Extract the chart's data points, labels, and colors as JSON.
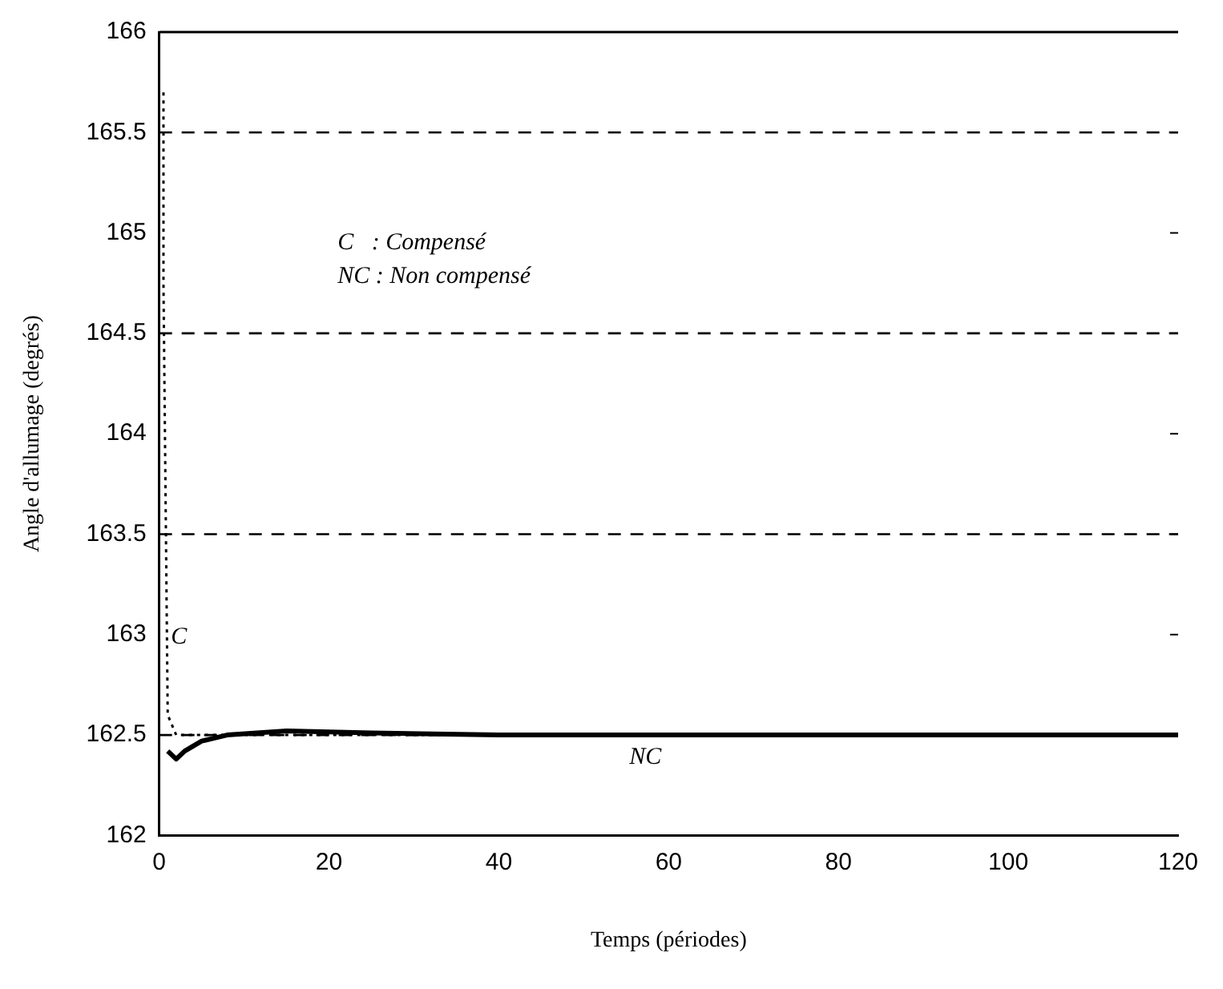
{
  "chart_data": {
    "type": "line",
    "xlabel": "Temps (périodes)",
    "ylabel": "Angle d'allumage (degrés)",
    "xlim": [
      0,
      120
    ],
    "xticks": [
      0,
      20,
      40,
      60,
      80,
      100,
      120
    ],
    "ylim": [
      162,
      166
    ],
    "yticks": [
      162,
      162.5,
      163,
      163.5,
      164,
      164.5,
      165,
      165.5,
      166
    ],
    "grid": false,
    "legend": false,
    "marker": "none",
    "series": [
      {
        "color": "#000000",
        "line_style": "dotted",
        "x": [
          0.5,
          0.5,
          1,
          2,
          5,
          20,
          60,
          120
        ],
        "values": [
          165.7,
          164.75,
          162.6,
          162.5,
          162.5,
          162.5,
          162.5,
          162.5
        ]
      },
      {
        "color": "#000000",
        "line_style": "solid",
        "x": [
          1,
          2,
          3,
          5,
          8,
          15,
          25,
          40,
          50,
          60,
          80,
          100,
          120
        ],
        "values": [
          162.42,
          162.38,
          162.42,
          162.47,
          162.5,
          162.52,
          162.51,
          162.5,
          162.5,
          162.5,
          162.5,
          162.5,
          162.5
        ]
      }
    ],
    "ref_lines": [
      {
        "axis": "y",
        "value": 165.5,
        "line_style": "dashed",
        "color": "#000000"
      },
      {
        "axis": "y",
        "value": 164.5,
        "line_style": "dashed",
        "color": "#000000"
      },
      {
        "axis": "y",
        "value": 163.5,
        "line_style": "dashed",
        "color": "#000000"
      },
      {
        "axis": "y",
        "value": 162.5,
        "line_style": "dashed",
        "color": "#000000"
      }
    ],
    "annotations": [
      "C   : Compensé",
      "NC : Non compensé",
      {
        "text": "C",
        "x": 1,
        "y": 163.1
      },
      {
        "text": "NC",
        "x": 55,
        "y": 162.5
      }
    ]
  }
}
